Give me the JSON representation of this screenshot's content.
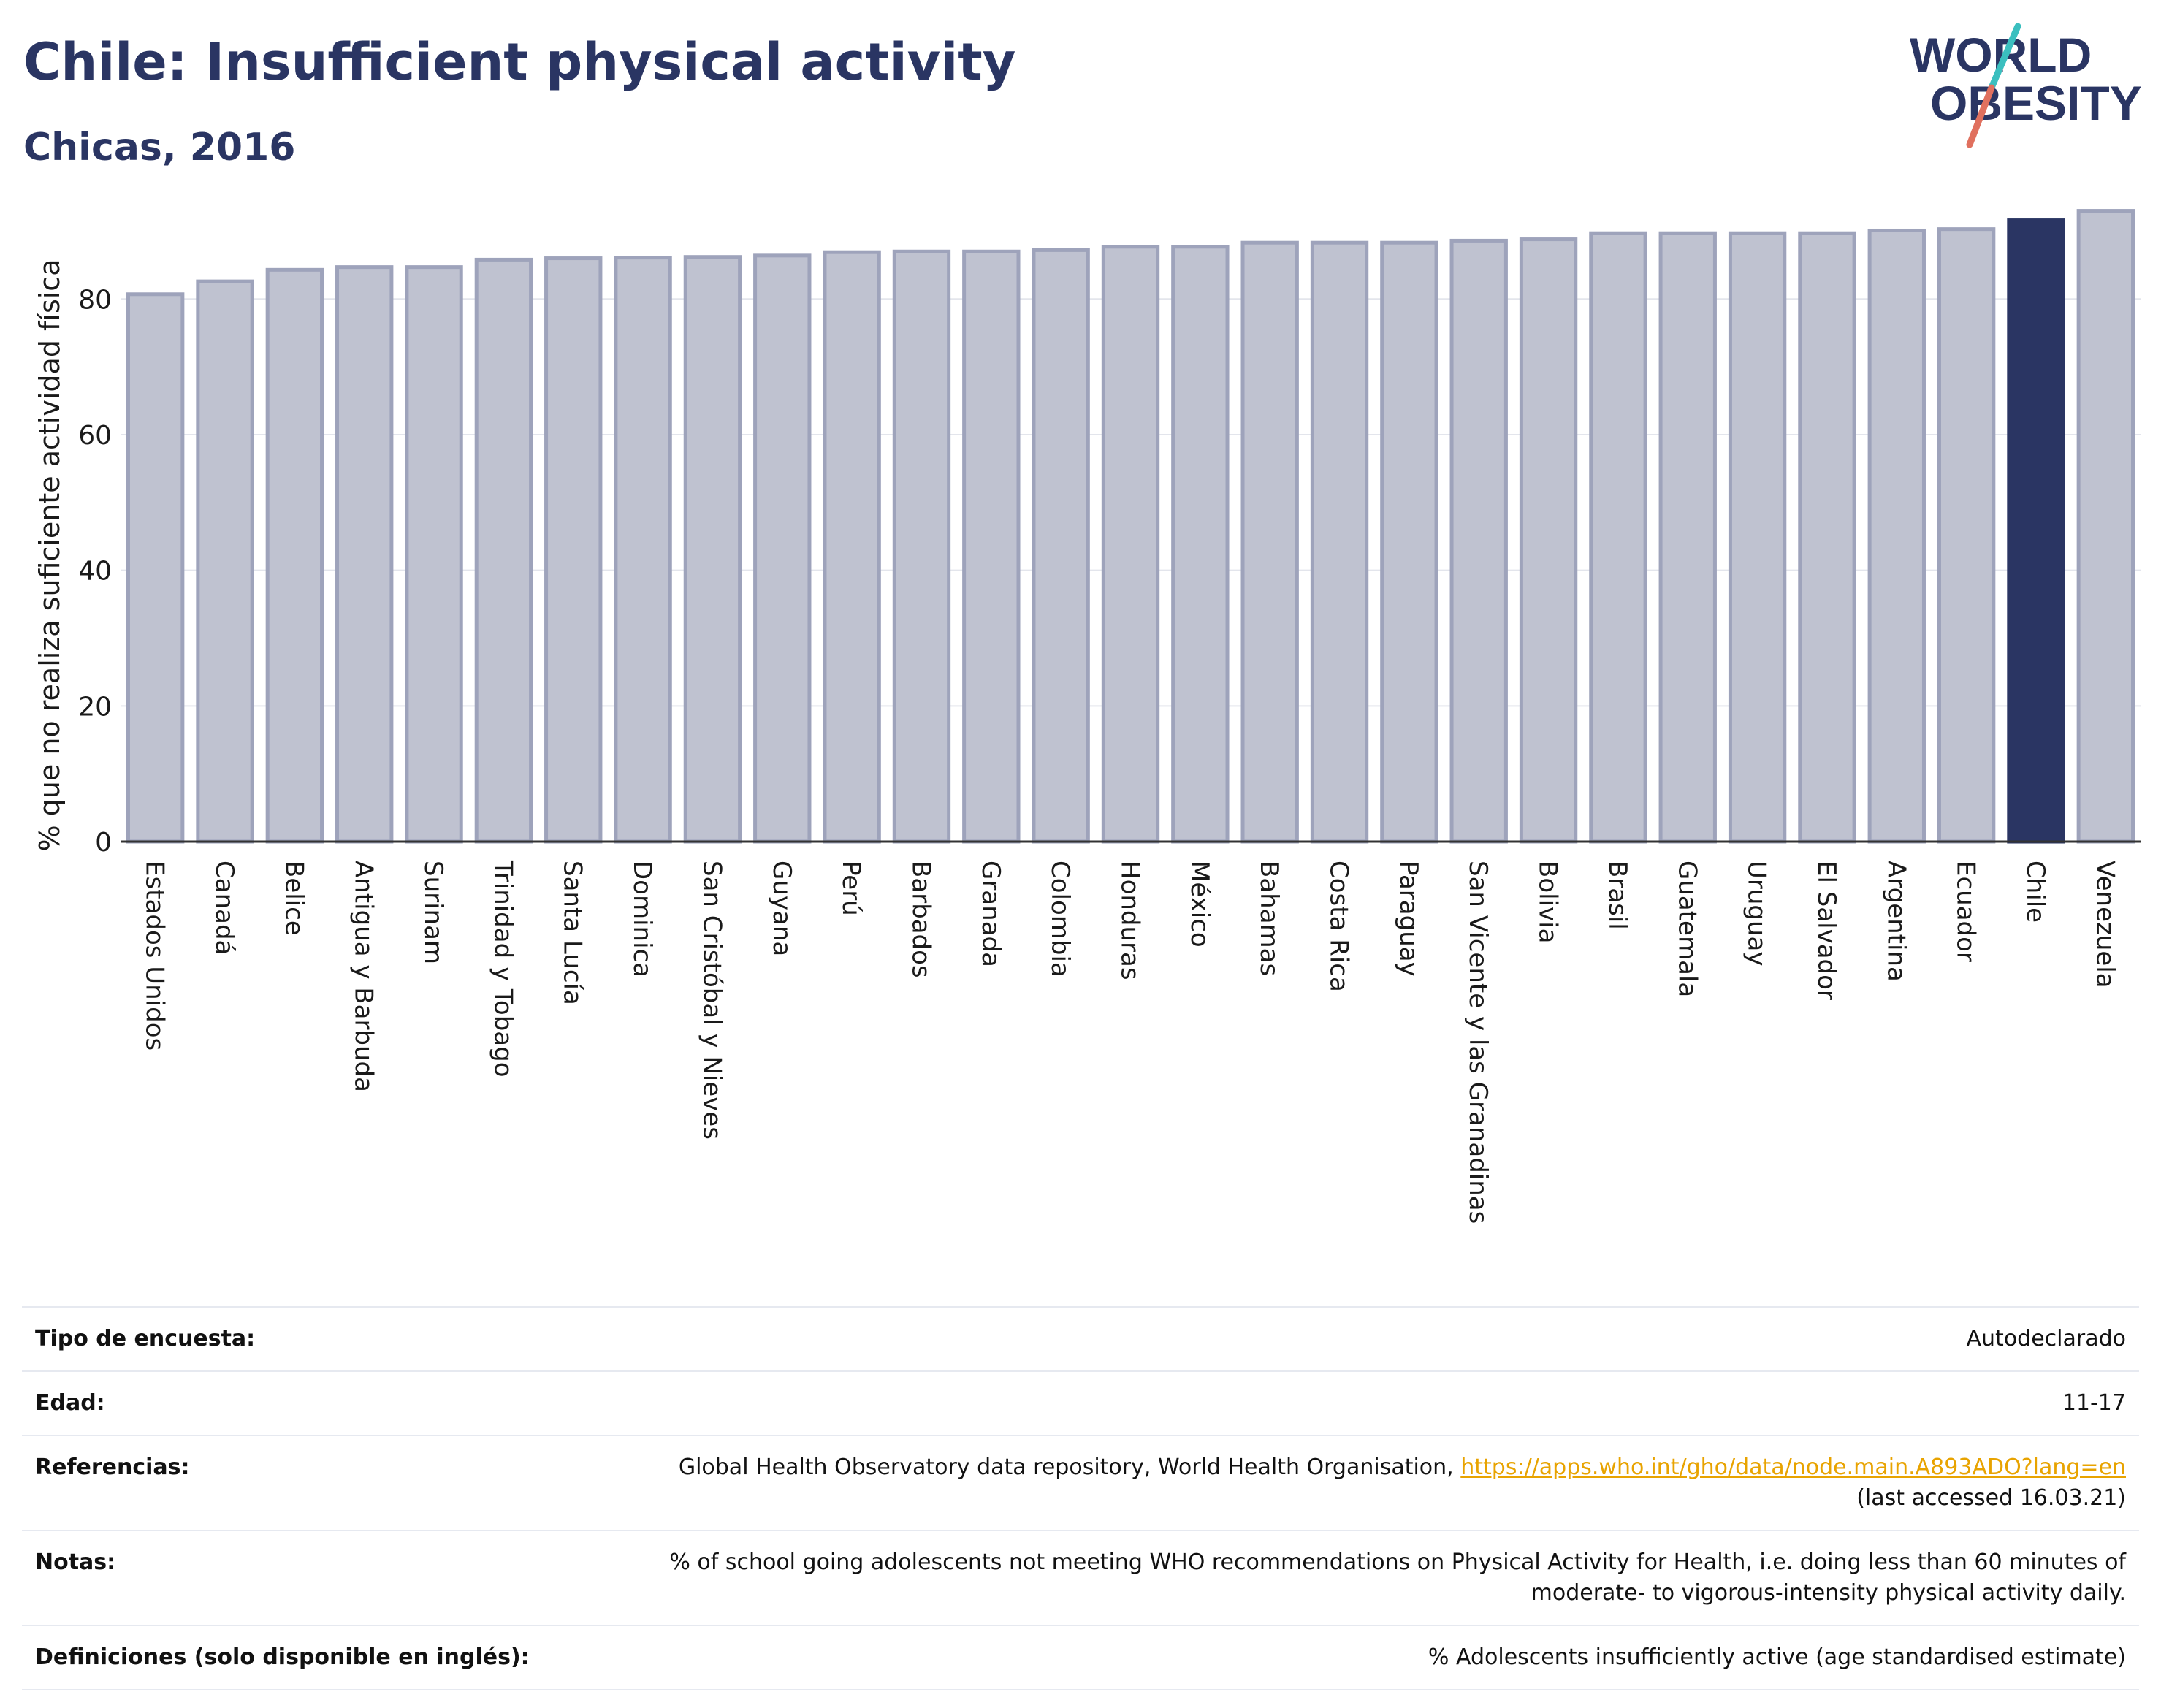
{
  "header": {
    "title": "Chile: Insufficient physical activity",
    "subtitle": "Chicas, 2016",
    "logo_line1": "WORLD",
    "logo_line2": "OBESITY"
  },
  "colors": {
    "title": "#2a3563",
    "bar_default_fill": "#bfc2d0",
    "bar_default_stroke": "#9ea3bb",
    "bar_highlight": "#2a3563",
    "grid": "#e3e5ec",
    "link": "#e8a300"
  },
  "chart_data": {
    "type": "bar",
    "ylabel": "% que no realiza suficiente actividad física",
    "xlabel": "",
    "ylim": [
      0,
      95
    ],
    "yticks": [
      0,
      20,
      40,
      60,
      80
    ],
    "grid": true,
    "highlight": "Chile",
    "categories": [
      "Estados Unidos",
      "Canadá",
      "Belice",
      "Antigua y Barbuda",
      "Surinam",
      "Trinidad y Tobago",
      "Santa Lucía",
      "Dominica",
      "San Cristóbal y Nieves",
      "Guyana",
      "Perú",
      "Barbados",
      "Granada",
      "Colombia",
      "Honduras",
      "México",
      "Bahamas",
      "Costa Rica",
      "Paraguay",
      "San Vicente y las Granadinas",
      "Bolivia",
      "Brasil",
      "Guatemala",
      "Uruguay",
      "El Salvador",
      "Argentina",
      "Ecuador",
      "Chile",
      "Venezuela"
    ],
    "values": [
      80.7,
      82.6,
      84.3,
      84.7,
      84.7,
      85.8,
      86.0,
      86.1,
      86.2,
      86.4,
      86.9,
      87.0,
      87.0,
      87.2,
      87.7,
      87.7,
      88.3,
      88.3,
      88.3,
      88.6,
      88.8,
      89.7,
      89.7,
      89.7,
      89.7,
      90.1,
      90.3,
      91.6,
      93.0
    ]
  },
  "info": {
    "rows": [
      {
        "label": "Tipo de encuesta:",
        "value": "Autodeclarado"
      },
      {
        "label": "Edad:",
        "value": "11-17"
      },
      {
        "label": "Referencias:",
        "value": "Global Health Observatory data repository, World Health Organisation,",
        "link": "https://apps.who.int/gho/data/node.main.A893ADO?lang=en",
        "extra": "(last accessed 16.03.21)"
      },
      {
        "label": "Notas:",
        "value": "% of school going adolescents not meeting WHO recommendations on Physical Activity for Health, i.e. doing less than 60 minutes of moderate- to vigorous-intensity physical activity daily."
      },
      {
        "label": "Definiciones (solo disponible en inglés):",
        "value": "% Adolescents insufficiently active (age standardised estimate)"
      }
    ]
  }
}
